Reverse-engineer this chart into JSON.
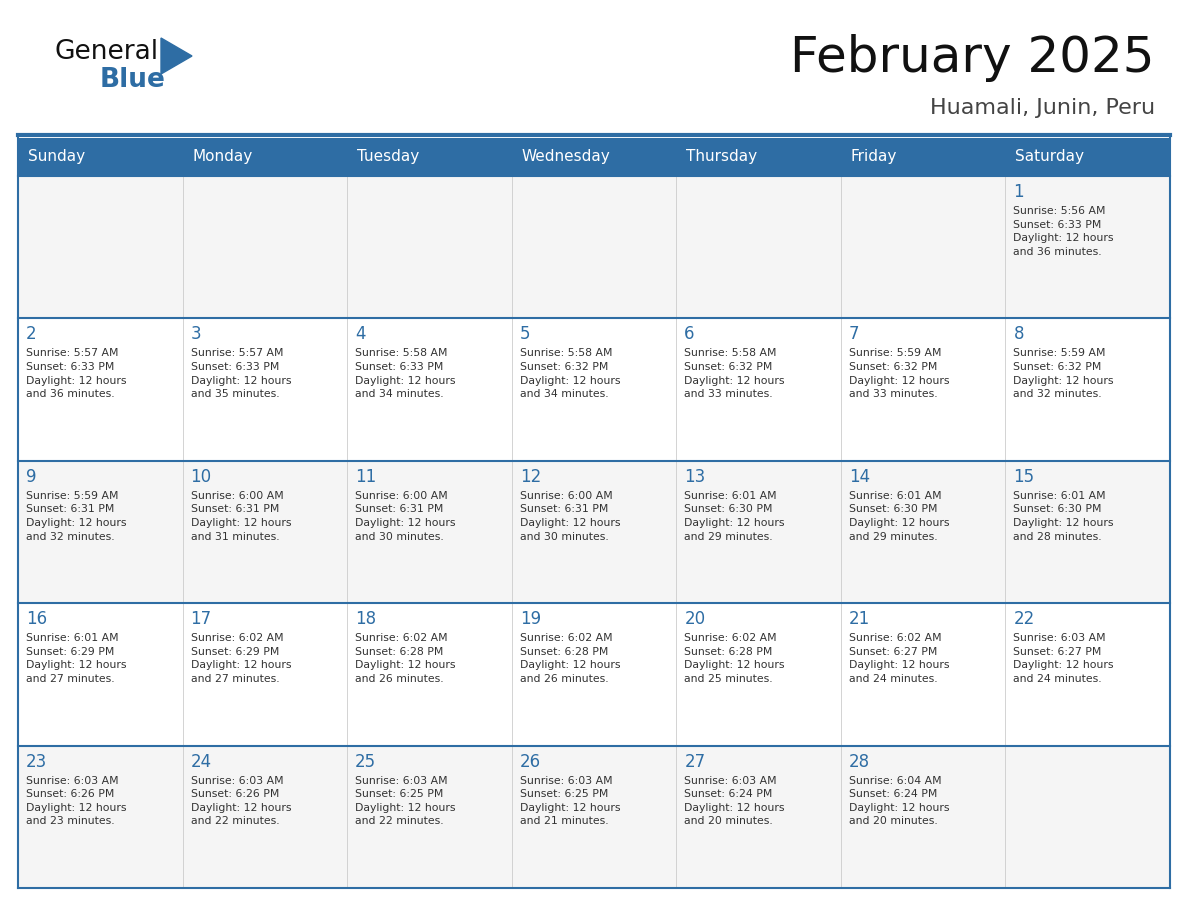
{
  "title": "February 2025",
  "subtitle": "Huamali, Junin, Peru",
  "header_bg": "#2E6DA4",
  "header_text_color": "#FFFFFF",
  "day_names": [
    "Sunday",
    "Monday",
    "Tuesday",
    "Wednesday",
    "Thursday",
    "Friday",
    "Saturday"
  ],
  "cell_bg_light": "#F5F5F5",
  "cell_bg_white": "#FFFFFF",
  "grid_border_color": "#2E6DA4",
  "inner_line_color": "#CCCCCC",
  "date_color": "#2E6DA4",
  "info_color": "#333333",
  "title_color": "#111111",
  "subtitle_color": "#444444",
  "logo_general_color": "#111111",
  "logo_blue_color": "#2E6DA4",
  "weeks": [
    {
      "days": [
        {
          "date": "",
          "info": ""
        },
        {
          "date": "",
          "info": ""
        },
        {
          "date": "",
          "info": ""
        },
        {
          "date": "",
          "info": ""
        },
        {
          "date": "",
          "info": ""
        },
        {
          "date": "",
          "info": ""
        },
        {
          "date": "1",
          "info": "Sunrise: 5:56 AM\nSunset: 6:33 PM\nDaylight: 12 hours\nand 36 minutes."
        }
      ]
    },
    {
      "days": [
        {
          "date": "2",
          "info": "Sunrise: 5:57 AM\nSunset: 6:33 PM\nDaylight: 12 hours\nand 36 minutes."
        },
        {
          "date": "3",
          "info": "Sunrise: 5:57 AM\nSunset: 6:33 PM\nDaylight: 12 hours\nand 35 minutes."
        },
        {
          "date": "4",
          "info": "Sunrise: 5:58 AM\nSunset: 6:33 PM\nDaylight: 12 hours\nand 34 minutes."
        },
        {
          "date": "5",
          "info": "Sunrise: 5:58 AM\nSunset: 6:32 PM\nDaylight: 12 hours\nand 34 minutes."
        },
        {
          "date": "6",
          "info": "Sunrise: 5:58 AM\nSunset: 6:32 PM\nDaylight: 12 hours\nand 33 minutes."
        },
        {
          "date": "7",
          "info": "Sunrise: 5:59 AM\nSunset: 6:32 PM\nDaylight: 12 hours\nand 33 minutes."
        },
        {
          "date": "8",
          "info": "Sunrise: 5:59 AM\nSunset: 6:32 PM\nDaylight: 12 hours\nand 32 minutes."
        }
      ]
    },
    {
      "days": [
        {
          "date": "9",
          "info": "Sunrise: 5:59 AM\nSunset: 6:31 PM\nDaylight: 12 hours\nand 32 minutes."
        },
        {
          "date": "10",
          "info": "Sunrise: 6:00 AM\nSunset: 6:31 PM\nDaylight: 12 hours\nand 31 minutes."
        },
        {
          "date": "11",
          "info": "Sunrise: 6:00 AM\nSunset: 6:31 PM\nDaylight: 12 hours\nand 30 minutes."
        },
        {
          "date": "12",
          "info": "Sunrise: 6:00 AM\nSunset: 6:31 PM\nDaylight: 12 hours\nand 30 minutes."
        },
        {
          "date": "13",
          "info": "Sunrise: 6:01 AM\nSunset: 6:30 PM\nDaylight: 12 hours\nand 29 minutes."
        },
        {
          "date": "14",
          "info": "Sunrise: 6:01 AM\nSunset: 6:30 PM\nDaylight: 12 hours\nand 29 minutes."
        },
        {
          "date": "15",
          "info": "Sunrise: 6:01 AM\nSunset: 6:30 PM\nDaylight: 12 hours\nand 28 minutes."
        }
      ]
    },
    {
      "days": [
        {
          "date": "16",
          "info": "Sunrise: 6:01 AM\nSunset: 6:29 PM\nDaylight: 12 hours\nand 27 minutes."
        },
        {
          "date": "17",
          "info": "Sunrise: 6:02 AM\nSunset: 6:29 PM\nDaylight: 12 hours\nand 27 minutes."
        },
        {
          "date": "18",
          "info": "Sunrise: 6:02 AM\nSunset: 6:28 PM\nDaylight: 12 hours\nand 26 minutes."
        },
        {
          "date": "19",
          "info": "Sunrise: 6:02 AM\nSunset: 6:28 PM\nDaylight: 12 hours\nand 26 minutes."
        },
        {
          "date": "20",
          "info": "Sunrise: 6:02 AM\nSunset: 6:28 PM\nDaylight: 12 hours\nand 25 minutes."
        },
        {
          "date": "21",
          "info": "Sunrise: 6:02 AM\nSunset: 6:27 PM\nDaylight: 12 hours\nand 24 minutes."
        },
        {
          "date": "22",
          "info": "Sunrise: 6:03 AM\nSunset: 6:27 PM\nDaylight: 12 hours\nand 24 minutes."
        }
      ]
    },
    {
      "days": [
        {
          "date": "23",
          "info": "Sunrise: 6:03 AM\nSunset: 6:26 PM\nDaylight: 12 hours\nand 23 minutes."
        },
        {
          "date": "24",
          "info": "Sunrise: 6:03 AM\nSunset: 6:26 PM\nDaylight: 12 hours\nand 22 minutes."
        },
        {
          "date": "25",
          "info": "Sunrise: 6:03 AM\nSunset: 6:25 PM\nDaylight: 12 hours\nand 22 minutes."
        },
        {
          "date": "26",
          "info": "Sunrise: 6:03 AM\nSunset: 6:25 PM\nDaylight: 12 hours\nand 21 minutes."
        },
        {
          "date": "27",
          "info": "Sunrise: 6:03 AM\nSunset: 6:24 PM\nDaylight: 12 hours\nand 20 minutes."
        },
        {
          "date": "28",
          "info": "Sunrise: 6:04 AM\nSunset: 6:24 PM\nDaylight: 12 hours\nand 20 minutes."
        },
        {
          "date": "",
          "info": ""
        }
      ]
    }
  ]
}
